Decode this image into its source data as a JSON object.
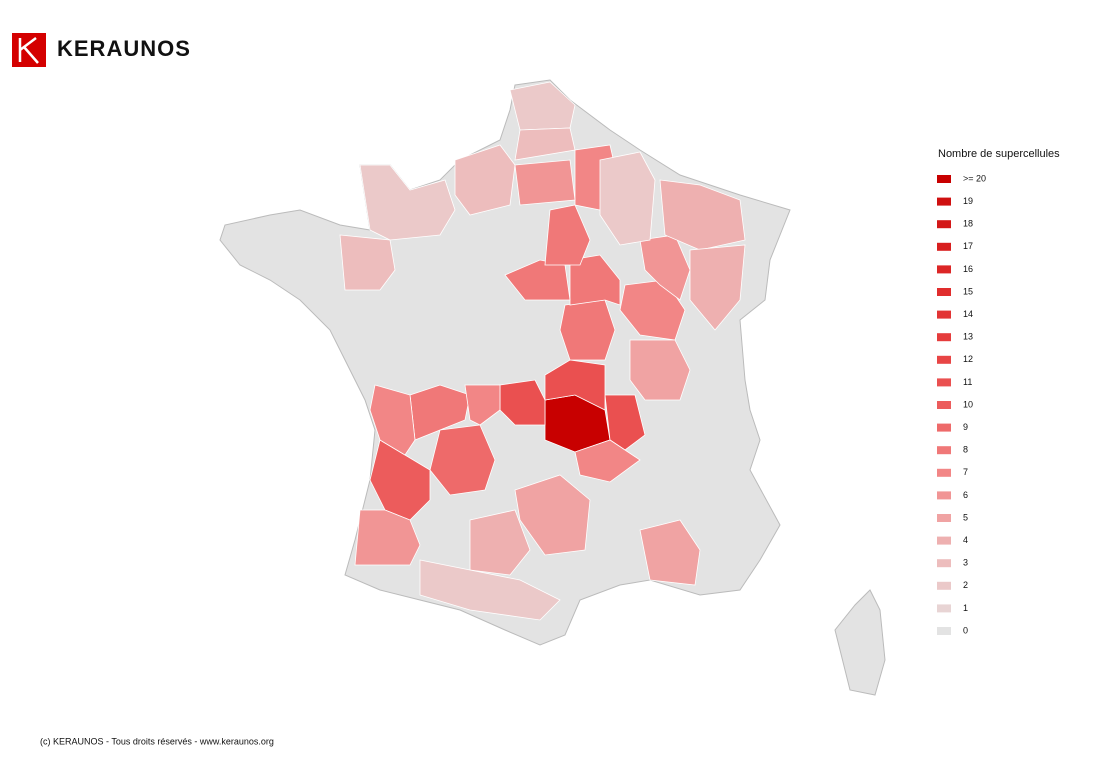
{
  "header": {
    "logo_text": "KERAUNOS"
  },
  "map": {
    "legend": {
      "title": "Nombre de supercellules",
      "items": [
        {
          "label": ">= 20",
          "color": "#c80000"
        },
        {
          "label": 19,
          "color": "#cf1010"
        },
        {
          "label": 18,
          "color": "#d31818"
        },
        {
          "label": 17,
          "color": "#d81f1f"
        },
        {
          "label": 16,
          "color": "#dc2626"
        },
        {
          "label": 15,
          "color": "#e02d2d"
        },
        {
          "label": 14,
          "color": "#e23434"
        },
        {
          "label": 13,
          "color": "#e53c3c"
        },
        {
          "label": 12,
          "color": "#e84545"
        },
        {
          "label": 11,
          "color": "#ea5050"
        },
        {
          "label": 10,
          "color": "#ec5c5c"
        },
        {
          "label": 9,
          "color": "#ee6a6a"
        },
        {
          "label": 8,
          "color": "#f07878"
        },
        {
          "label": 7,
          "color": "#f28686"
        },
        {
          "label": 6,
          "color": "#f19595"
        },
        {
          "label": 5,
          "color": "#f0a3a3"
        },
        {
          "label": 4,
          "color": "#eeb0b0"
        },
        {
          "label": 3,
          "color": "#edbdbd"
        },
        {
          "label": 2,
          "color": "#ebc9c9"
        },
        {
          "label": 1,
          "color": "#e8d4d4"
        },
        {
          "label": 0,
          "color": "#e3e3e3"
        }
      ]
    },
    "values": [
      20,
      11,
      11,
      11,
      7,
      9,
      10,
      8,
      7,
      6,
      7,
      8,
      8,
      8,
      8,
      7,
      7,
      6,
      6,
      5,
      5,
      5,
      4,
      2,
      2,
      2,
      3,
      2,
      4,
      3,
      4,
      3
    ]
  },
  "footer": "(c) KERAUNOS - Tous droits réservés - www.keraunos.org"
}
